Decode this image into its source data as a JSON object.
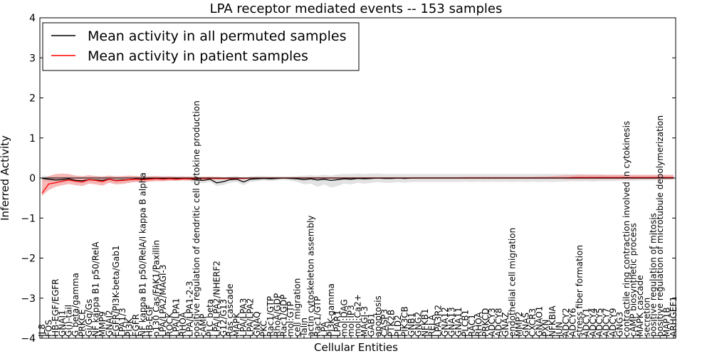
{
  "chart_data": {
    "type": "line",
    "title": "LPA receptor mediated events -- 153 samples",
    "xlabel": "Cellular Entities",
    "ylabel": "Inferred Activity",
    "ylim": [
      -4,
      4
    ],
    "yticks": [
      -4,
      -3,
      -2,
      -1,
      0,
      1,
      2,
      3,
      4
    ],
    "ytick_labels": [
      "−4",
      "−3",
      "−2",
      "−1",
      "0",
      "1",
      "2",
      "3",
      "4"
    ],
    "grid": false,
    "legend_position": "top-left",
    "categories": [
      "IL8",
      "FOS",
      "HB-EGF/EGFR",
      "GNAI1",
      "G(i)-tail",
      "G beta/gamma",
      "PRKCE",
      "Gi/Gq/Gs",
      "NF kappa B1 p50/RelA",
      "MMP9",
      "GNAI2",
      "EGFR/PI3K-beta/Gab1",
      "LPA1/3",
      "PI3K",
      "EGFR",
      "NF kappa B1 p50/RelA/I kappa B alpha",
      "HB-EGF",
      "p130 Cas/FAK1/Paxillin",
      "LPA/LPA2/MAGI-3",
      "ROCK",
      "LPA/LPA1",
      "RHOA",
      "LPA/LPA1-2-3",
      "positive regulation of dendritic cell cytokine production",
      "cAMP",
      "PLC beta",
      "LPA/LPA2/NHERF2",
      "G12/G13",
      "Ras cascade",
      "MAPK",
      "LPA/LPA3",
      "LPA/LPA2",
      "GNAQ",
      "PKC",
      "Rac1/GTP",
      "RhoA/GDP",
      "Rac1/GDP",
      "mol:GTP",
      "cell migration",
      "Talin",
      "actin cytoskeleton assembly",
      "Rac1/GTP",
      "LPA",
      "PI3K-gamma",
      "LPAR1",
      "mol:DAG",
      "mol:IP3",
      "mol:Ca2+",
      "MAGI-3",
      "GAB1",
      "apoptosis",
      "CASP3",
      "PTK2B",
      "PLD2",
      "PIK3CB",
      "GNB1",
      "GNG2",
      "NFKB1",
      "RELA",
      "LPA3R2",
      "GNA12",
      "GNA13",
      "GNA11",
      "PLCB1",
      "RAC1",
      "RHOA",
      "PRKCD",
      "ADCY3",
      "ADCY8",
      "GNAZ",
      "endothelial cell migration",
      "MMP2",
      "GNAS",
      "CXCR3",
      "GNAO1",
      "PXN",
      "NFKBIA",
      "JUN",
      "ADCY2",
      "ADCY6",
      "stress fiber formation",
      "ADCY1",
      "ADCY4",
      "ADCY5",
      "ADCY7",
      "ADCY9",
      "GNG3",
      "contractile ring contraction involved in cytokinesis",
      "cAMP biosynthetic process",
      "MAPK cascade",
      "secretion",
      "positive regulation of mitosis",
      "positive regulation of microtubule depolymerization",
      "MAP1B",
      "ARHGEF1"
    ],
    "series": [
      {
        "name": "Mean activity in all permuted samples",
        "color": "#000000",
        "values": [
          -0.01,
          -0.03,
          -0.05,
          -0.04,
          -0.02,
          -0.06,
          -0.07,
          -0.04,
          -0.05,
          -0.06,
          -0.03,
          -0.06,
          -0.05,
          -0.04,
          -0.02,
          -0.03,
          -0.02,
          -0.01,
          -0.02,
          -0.01,
          -0.02,
          -0.01,
          -0.02,
          -0.05,
          -0.06,
          -0.03,
          -0.12,
          -0.09,
          -0.04,
          -0.03,
          -0.1,
          -0.03,
          -0.02,
          -0.01,
          -0.02,
          -0.01,
          0.0,
          -0.01,
          -0.02,
          -0.04,
          -0.02,
          -0.05,
          -0.03,
          -0.06,
          -0.04,
          -0.02,
          -0.03,
          -0.01,
          -0.02,
          -0.01,
          0.0,
          -0.01,
          -0.01,
          0.0,
          -0.01,
          0.0,
          0.0,
          0.0,
          0.0,
          0.0,
          0.0,
          0.0,
          0.0,
          0.0,
          0.0,
          0.0,
          0.0,
          0.0,
          0.0,
          0.0,
          0.0,
          0.0,
          0.0,
          0.0,
          0.0,
          0.0,
          0.0,
          0.0,
          0.0,
          0.0,
          0.0,
          0.0,
          0.0,
          0.0,
          0.0,
          0.0,
          0.0,
          0.0,
          0.0,
          0.0,
          0.0,
          0.0,
          0.0,
          0.0,
          0.0
        ],
        "band_lower": [
          -0.08,
          -0.1,
          -0.12,
          -0.1,
          -0.09,
          -0.12,
          -0.13,
          -0.1,
          -0.11,
          -0.12,
          -0.1,
          -0.13,
          -0.12,
          -0.1,
          -0.08,
          -0.1,
          -0.08,
          -0.06,
          -0.08,
          -0.06,
          -0.07,
          -0.06,
          -0.08,
          -0.12,
          -0.13,
          -0.1,
          -0.2,
          -0.17,
          -0.12,
          -0.1,
          -0.18,
          -0.1,
          -0.08,
          -0.06,
          -0.08,
          -0.06,
          -0.05,
          -0.07,
          -0.1,
          -0.16,
          -0.14,
          -0.22,
          -0.16,
          -0.24,
          -0.2,
          -0.14,
          -0.16,
          -0.12,
          -0.14,
          -0.12,
          -0.1,
          -0.12,
          -0.12,
          -0.1,
          -0.12,
          -0.1,
          -0.1,
          -0.1,
          -0.1,
          -0.1,
          -0.1,
          -0.1,
          -0.1,
          -0.09,
          -0.1,
          -0.09,
          -0.1,
          -0.09,
          -0.1,
          -0.09,
          -0.1,
          -0.09,
          -0.1,
          -0.09,
          -0.1,
          -0.09,
          -0.1,
          -0.09,
          -0.09,
          -0.08,
          -0.09,
          -0.08,
          -0.09,
          -0.08,
          -0.08,
          -0.08,
          -0.07,
          -0.07,
          -0.07,
          -0.06,
          -0.06,
          -0.06,
          -0.05,
          -0.05,
          -0.05
        ],
        "band_upper": [
          0.06,
          0.05,
          0.04,
          0.05,
          0.06,
          0.03,
          0.02,
          0.04,
          0.04,
          0.03,
          0.05,
          0.03,
          0.03,
          0.04,
          0.05,
          0.04,
          0.05,
          0.05,
          0.04,
          0.05,
          0.04,
          0.05,
          0.04,
          0.03,
          0.02,
          0.04,
          0.0,
          0.01,
          0.04,
          0.05,
          0.0,
          0.04,
          0.05,
          0.05,
          0.04,
          0.04,
          0.04,
          0.04,
          0.05,
          0.06,
          0.07,
          0.06,
          0.08,
          0.06,
          0.09,
          0.1,
          0.1,
          0.11,
          0.1,
          0.11,
          0.11,
          0.1,
          0.1,
          0.1,
          0.1,
          0.1,
          0.1,
          0.1,
          0.1,
          0.1,
          0.1,
          0.1,
          0.1,
          0.1,
          0.1,
          0.1,
          0.1,
          0.1,
          0.1,
          0.1,
          0.1,
          0.1,
          0.1,
          0.1,
          0.1,
          0.1,
          0.1,
          0.1,
          0.1,
          0.1,
          0.1,
          0.09,
          0.09,
          0.09,
          0.08,
          0.08,
          0.08,
          0.07,
          0.07,
          0.07,
          0.06,
          0.06,
          0.06,
          0.05,
          0.05
        ],
        "band_color": "#d6d6d6"
      },
      {
        "name": "Mean activity in patient samples",
        "color": "#ff0000",
        "values": [
          -0.38,
          -0.15,
          -0.12,
          -0.08,
          -0.05,
          -0.08,
          -0.1,
          -0.04,
          -0.06,
          -0.09,
          -0.03,
          -0.07,
          -0.06,
          -0.04,
          -0.03,
          -0.04,
          -0.03,
          -0.02,
          -0.03,
          -0.02,
          -0.03,
          -0.02,
          -0.02,
          -0.01,
          -0.01,
          -0.01,
          -0.01,
          -0.01,
          -0.01,
          -0.01,
          -0.01,
          0.0,
          0.0,
          0.0,
          0.0,
          0.0,
          0.0,
          0.0,
          0.0,
          0.0,
          0.0,
          0.0,
          0.0,
          0.0,
          0.0,
          0.0,
          0.0,
          0.0,
          0.0,
          0.0,
          0.0,
          0.0,
          0.0,
          0.0,
          0.0,
          0.0,
          0.0,
          0.0,
          0.0,
          0.0,
          0.0,
          0.0,
          0.0,
          0.0,
          0.0,
          0.0,
          0.0,
          0.0,
          0.0,
          0.0,
          0.0,
          0.0,
          0.0,
          0.0,
          0.0,
          0.0,
          0.0,
          0.0,
          0.0,
          0.01,
          0.01,
          0.01,
          0.01,
          0.01,
          0.01,
          0.01,
          0.01,
          0.01,
          0.01,
          0.01,
          0.01,
          0.01,
          0.01,
          0.01,
          0.01
        ],
        "band_lower": [
          -0.45,
          -0.3,
          -0.22,
          -0.18,
          -0.15,
          -0.18,
          -0.2,
          -0.14,
          -0.16,
          -0.19,
          -0.12,
          -0.16,
          -0.15,
          -0.12,
          -0.1,
          -0.11,
          -0.09,
          -0.08,
          -0.08,
          -0.07,
          -0.07,
          -0.06,
          -0.06,
          -0.05,
          -0.05,
          -0.04,
          -0.04,
          -0.04,
          -0.04,
          -0.03,
          -0.03,
          -0.03,
          -0.03,
          -0.02,
          -0.02,
          -0.02,
          -0.02,
          -0.02,
          -0.02,
          -0.02,
          -0.02,
          -0.02,
          -0.02,
          -0.02,
          -0.02,
          -0.02,
          -0.02,
          -0.02,
          -0.02,
          -0.02,
          -0.02,
          -0.02,
          -0.02,
          -0.02,
          -0.02,
          -0.02,
          -0.02,
          -0.02,
          -0.02,
          -0.02,
          -0.02,
          -0.02,
          -0.02,
          -0.02,
          -0.02,
          -0.02,
          -0.02,
          -0.02,
          -0.02,
          -0.02,
          -0.02,
          -0.02,
          -0.02,
          -0.02,
          -0.02,
          -0.02,
          -0.02,
          -0.02,
          -0.03,
          -0.03,
          -0.03,
          -0.03,
          -0.03,
          -0.03,
          -0.03,
          -0.03,
          -0.03,
          -0.03,
          -0.03,
          -0.03,
          -0.03,
          -0.03,
          -0.03,
          -0.03,
          -0.03
        ],
        "band_upper": [
          -0.05,
          0.05,
          0.1,
          0.11,
          0.1,
          0.06,
          0.05,
          0.07,
          0.05,
          0.04,
          0.06,
          0.04,
          0.05,
          0.06,
          0.05,
          0.04,
          0.04,
          0.05,
          0.04,
          0.04,
          0.03,
          0.03,
          0.03,
          0.03,
          0.03,
          0.03,
          0.03,
          0.02,
          0.02,
          0.02,
          0.02,
          0.02,
          0.02,
          0.02,
          0.02,
          0.02,
          0.02,
          0.02,
          0.02,
          0.02,
          0.02,
          0.02,
          0.02,
          0.02,
          0.02,
          0.02,
          0.02,
          0.02,
          0.02,
          0.02,
          0.02,
          0.02,
          0.02,
          0.02,
          0.02,
          0.02,
          0.02,
          0.02,
          0.02,
          0.02,
          0.02,
          0.02,
          0.02,
          0.03,
          0.03,
          0.03,
          0.03,
          0.03,
          0.03,
          0.03,
          0.03,
          0.03,
          0.03,
          0.03,
          0.04,
          0.04,
          0.05,
          0.06,
          0.07,
          0.07,
          0.08,
          0.08,
          0.08,
          0.08,
          0.08,
          0.08,
          0.08,
          0.08,
          0.08,
          0.08,
          0.08,
          0.08,
          0.08,
          0.08,
          0.08
        ],
        "band_color": "#f4a0a0"
      }
    ]
  }
}
